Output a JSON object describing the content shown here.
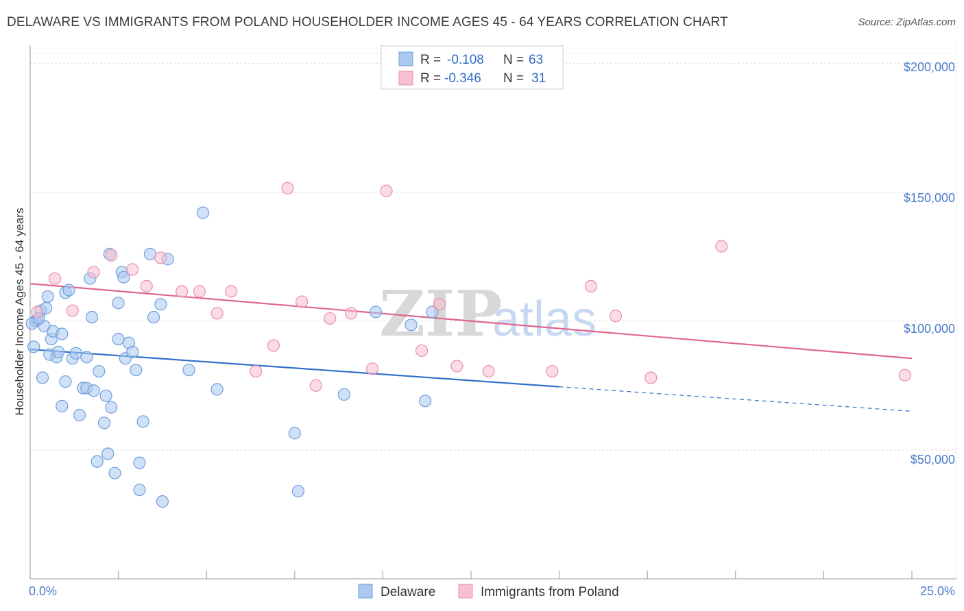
{
  "title": "DELAWARE VS IMMIGRANTS FROM POLAND HOUSEHOLDER INCOME AGES 45 - 64 YEARS CORRELATION CHART",
  "source": "Source: ZipAtlas.com",
  "colors": {
    "delaware_fill": "#aac8f0",
    "delaware_stroke": "#6f9fdc",
    "delaware_line": "#2f6fcb",
    "poland_fill": "#f7bfd0",
    "poland_stroke": "#e890ad",
    "poland_line": "#e0668f",
    "axis_text": "#4a7cc9",
    "grid": "#dddddd"
  },
  "legend": {
    "r_label": "R =",
    "n_label": "N =",
    "delaware_r": "-0.108",
    "delaware_n": "63",
    "poland_r": "-0.346",
    "poland_n": "31"
  },
  "bottom_legend": {
    "delaware": "Delaware",
    "poland": "Immigrants from Poland"
  },
  "watermark": {
    "zip": "ZIP",
    "atlas": "atlas"
  },
  "chart_data": {
    "type": "scatter",
    "title": "DELAWARE VS IMMIGRANTS FROM POLAND HOUSEHOLDER INCOME AGES 45 - 64 YEARS CORRELATION CHART",
    "xlabel": "",
    "ylabel": "Householder Income Ages 45 - 64 years",
    "xlim": [
      0,
      25
    ],
    "ylim": [
      0,
      207000
    ],
    "x_tick_labels": [
      "0.0%",
      "25.0%"
    ],
    "y_ticks": [
      50000,
      100000,
      150000,
      200000
    ],
    "y_tick_labels": [
      "$50,000",
      "$100,000",
      "$150,000",
      "$200,000"
    ],
    "grid": true,
    "legend_position": "top-center",
    "series": [
      {
        "name": "Delaware",
        "r": -0.108,
        "n": 63,
        "trend": {
          "x": [
            0,
            15
          ],
          "y": [
            89000,
            74500
          ],
          "dashed_to": [
            25,
            65000
          ]
        },
        "points": [
          [
            0.1,
            90000
          ],
          [
            0.15,
            100000
          ],
          [
            0.2,
            100500
          ],
          [
            0.3,
            104000
          ],
          [
            0.4,
            98000
          ],
          [
            0.45,
            105000
          ],
          [
            0.5,
            109500
          ],
          [
            0.55,
            87000
          ],
          [
            0.6,
            93000
          ],
          [
            0.65,
            96000
          ],
          [
            0.75,
            86000
          ],
          [
            0.8,
            88000
          ],
          [
            0.9,
            95000
          ],
          [
            0.35,
            78000
          ],
          [
            0.9,
            67000
          ],
          [
            1.0,
            76500
          ],
          [
            1.0,
            111000
          ],
          [
            1.1,
            112000
          ],
          [
            1.2,
            85500
          ],
          [
            1.3,
            87500
          ],
          [
            1.4,
            63500
          ],
          [
            1.5,
            74000
          ],
          [
            1.6,
            74000
          ],
          [
            1.6,
            86000
          ],
          [
            1.7,
            116500
          ],
          [
            1.75,
            101500
          ],
          [
            1.8,
            73000
          ],
          [
            1.9,
            45500
          ],
          [
            1.95,
            80500
          ],
          [
            2.1,
            60500
          ],
          [
            2.15,
            71000
          ],
          [
            2.2,
            48500
          ],
          [
            2.25,
            126000
          ],
          [
            2.3,
            66500
          ],
          [
            2.4,
            41000
          ],
          [
            2.5,
            93000
          ],
          [
            2.5,
            107000
          ],
          [
            2.6,
            119000
          ],
          [
            2.65,
            117000
          ],
          [
            2.7,
            85500
          ],
          [
            2.8,
            91500
          ],
          [
            2.9,
            88000
          ],
          [
            3.0,
            81000
          ],
          [
            3.1,
            45000
          ],
          [
            3.1,
            34500
          ],
          [
            3.2,
            61000
          ],
          [
            3.4,
            126000
          ],
          [
            3.5,
            101500
          ],
          [
            3.7,
            106500
          ],
          [
            3.75,
            30000
          ],
          [
            3.9,
            124000
          ],
          [
            4.5,
            81000
          ],
          [
            4.9,
            142000
          ],
          [
            5.3,
            73500
          ],
          [
            7.5,
            56500
          ],
          [
            7.6,
            34000
          ],
          [
            8.9,
            71500
          ],
          [
            9.8,
            103500
          ],
          [
            10.8,
            98500
          ],
          [
            11.2,
            69000
          ],
          [
            11.4,
            103500
          ],
          [
            0.05,
            99000
          ],
          [
            0.25,
            101000
          ]
        ]
      },
      {
        "name": "Immigrants from Poland",
        "r": -0.346,
        "n": 31,
        "trend": {
          "x": [
            0,
            25
          ],
          "y": [
            114500,
            85500
          ]
        },
        "points": [
          [
            0.2,
            103500
          ],
          [
            0.7,
            116500
          ],
          [
            1.2,
            104000
          ],
          [
            1.8,
            119000
          ],
          [
            2.3,
            125500
          ],
          [
            2.9,
            120000
          ],
          [
            3.3,
            113500
          ],
          [
            3.7,
            124500
          ],
          [
            4.3,
            111500
          ],
          [
            4.8,
            111500
          ],
          [
            5.3,
            103000
          ],
          [
            5.7,
            111500
          ],
          [
            6.4,
            80500
          ],
          [
            6.9,
            90500
          ],
          [
            7.3,
            151500
          ],
          [
            7.7,
            107500
          ],
          [
            8.1,
            75000
          ],
          [
            8.5,
            101000
          ],
          [
            9.1,
            103000
          ],
          [
            9.7,
            81500
          ],
          [
            10.1,
            150500
          ],
          [
            11.1,
            88500
          ],
          [
            11.6,
            106500
          ],
          [
            12.1,
            82500
          ],
          [
            13.0,
            80500
          ],
          [
            14.8,
            80500
          ],
          [
            15.9,
            113500
          ],
          [
            16.6,
            102000
          ],
          [
            17.6,
            78000
          ],
          [
            19.6,
            129000
          ],
          [
            24.8,
            79000
          ]
        ]
      }
    ]
  }
}
